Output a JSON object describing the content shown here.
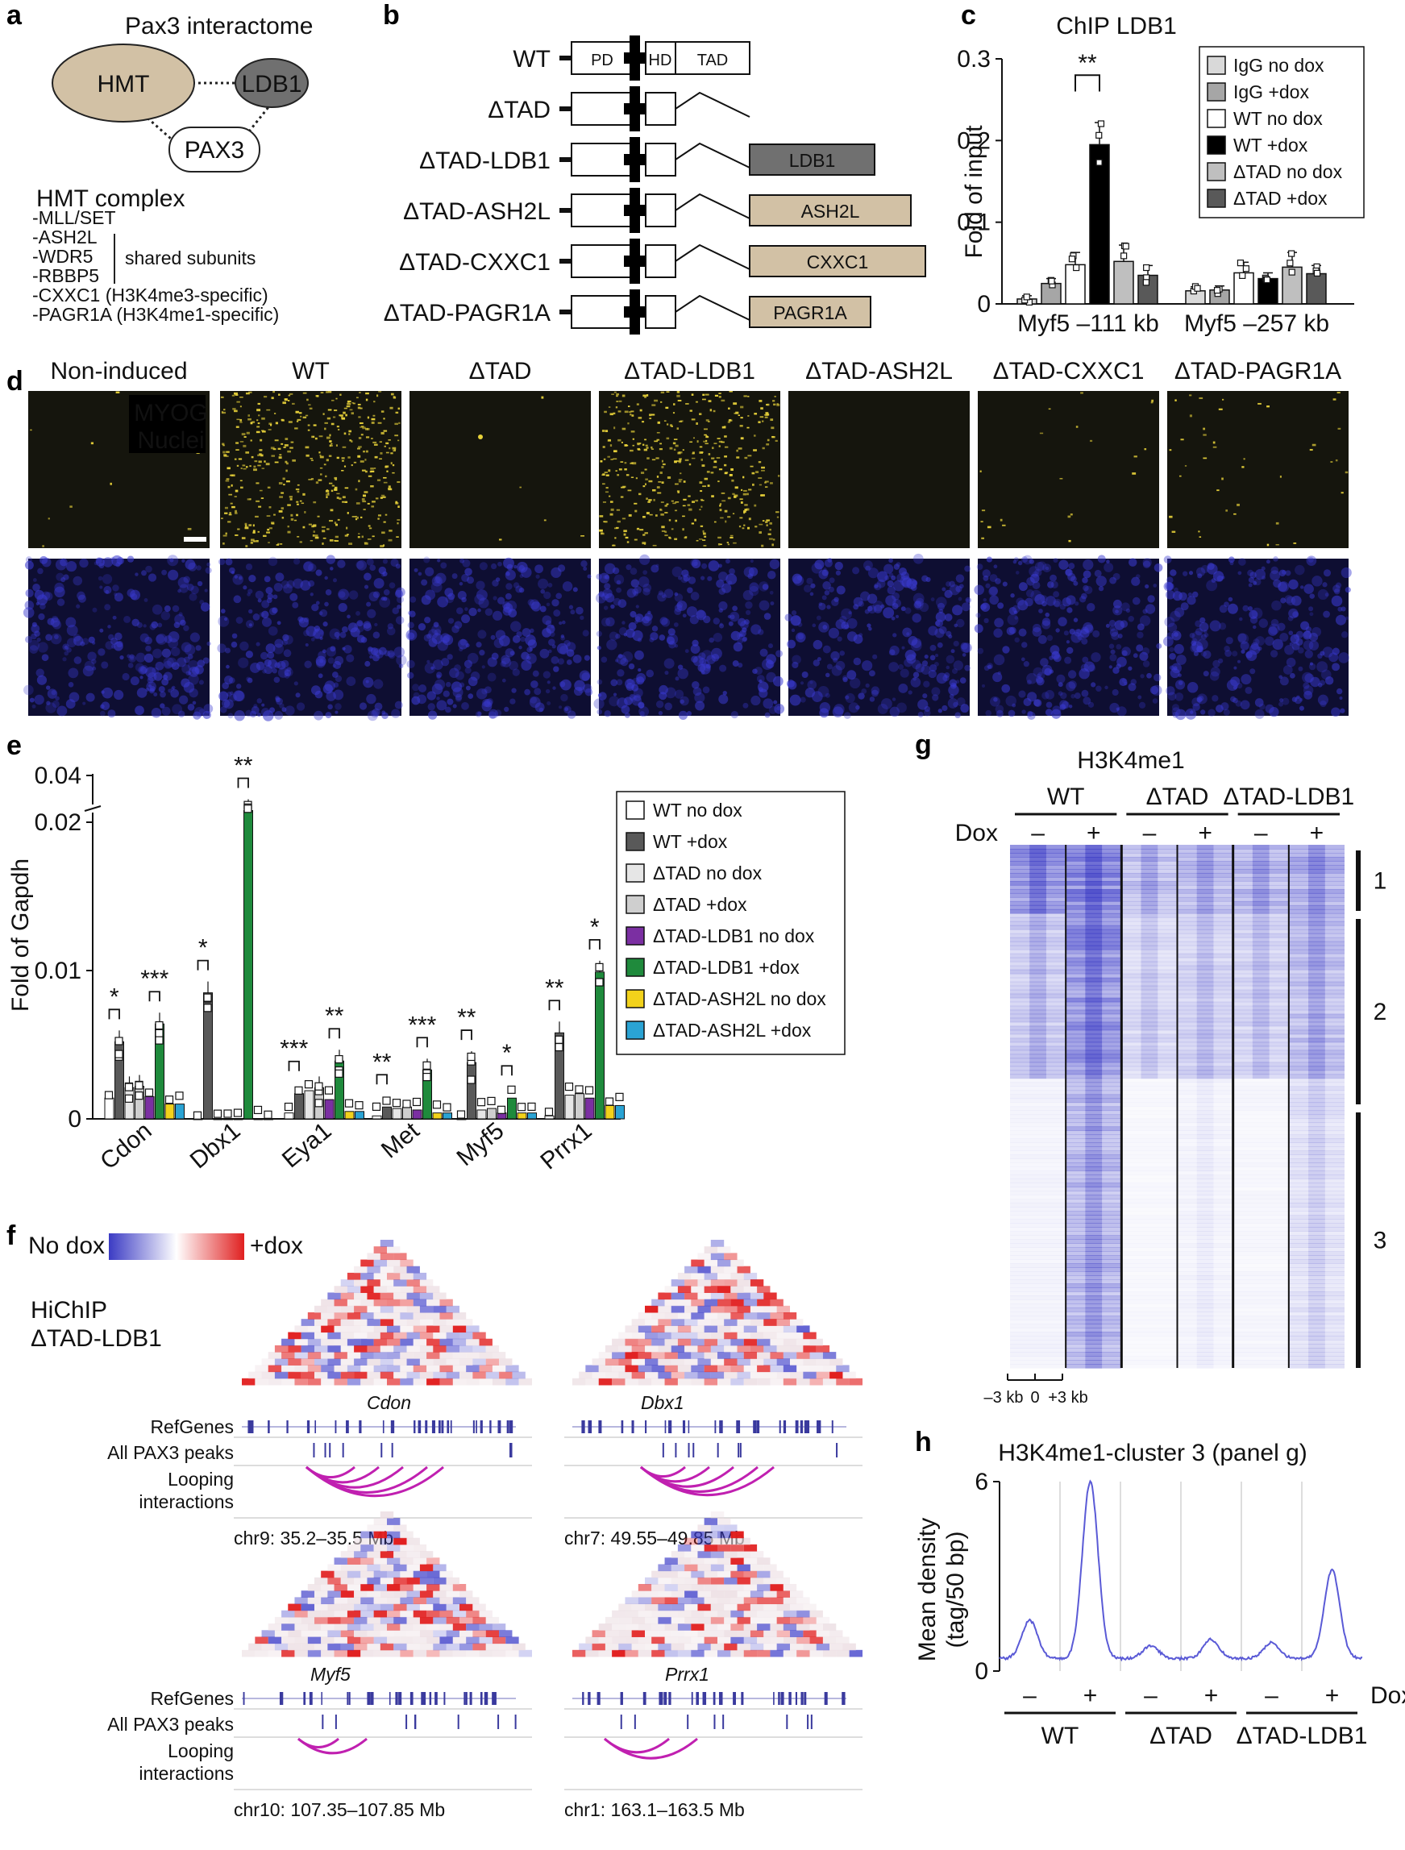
{
  "panel_letters": [
    "a",
    "b",
    "c",
    "d",
    "e",
    "f",
    "g",
    "h"
  ],
  "panel_a": {
    "title": "Pax3 interactome",
    "nodes": {
      "hmt": "HMT",
      "ldb1": "LDB1",
      "pax3": "PAX3"
    },
    "complex_title": "HMT complex",
    "subunits": [
      "-MLL/SET",
      "-ASH2L",
      "-WDR5",
      "-RBBP5",
      "-CXXC1 (H3K4me3-specific)",
      "-PAGR1A (H3K4me1-specific)"
    ],
    "shared_label": "shared subunits"
  },
  "panel_b": {
    "constructs": [
      {
        "name": "WT",
        "fusion": ""
      },
      {
        "name": "ΔTAD",
        "fusion": ""
      },
      {
        "name": "ΔTAD-LDB1",
        "fusion": "LDB1",
        "color": "#707070",
        "text_color": "#ffffff"
      },
      {
        "name": "ΔTAD-ASH2L",
        "fusion": "ASH2L",
        "color": "#d2c1a5",
        "text_color": "#111111"
      },
      {
        "name": "ΔTAD-CXXC1",
        "fusion": "CXXC1",
        "color": "#d2c1a5",
        "text_color": "#111111"
      },
      {
        "name": "ΔTAD-PAGR1A",
        "fusion": "PAGR1A",
        "color": "#d2c1a5",
        "text_color": "#111111"
      }
    ],
    "domains": {
      "pd": "PD",
      "hd": "HD",
      "tad": "TAD"
    }
  },
  "panel_c": {
    "title": "ChIP LDB1",
    "significance": "**",
    "chart_data": {
      "type": "bar",
      "title": "ChIP LDB1",
      "ylabel": "Fold of input",
      "ylim": [
        0,
        0.3
      ],
      "yticks": [
        "0",
        "0.1",
        "0.2",
        "0.3"
      ],
      "categories": [
        "Myf5 –111 kb",
        "Myf5 –257 kb"
      ],
      "series": [
        {
          "name": "IgG no dox",
          "color": "#d9d9d9",
          "values": [
            0.006,
            0.016
          ],
          "errors": [
            0.004,
            0.005
          ]
        },
        {
          "name": "IgG +dox",
          "color": "#a6a6a6",
          "values": [
            0.025,
            0.017
          ],
          "errors": [
            0.006,
            0.005
          ]
        },
        {
          "name": "WT no dox",
          "color": "#ffffff",
          "values": [
            0.048,
            0.038
          ],
          "errors": [
            0.015,
            0.013
          ]
        },
        {
          "name": "WT +dox",
          "color": "#000000",
          "values": [
            0.195,
            0.031
          ],
          "errors": [
            0.027,
            0.007
          ]
        },
        {
          "name": "ΔTAD no dox",
          "color": "#bfbfbf",
          "values": [
            0.052,
            0.045
          ],
          "errors": [
            0.02,
            0.018
          ]
        },
        {
          "name": "ΔTAD +dox",
          "color": "#595959",
          "values": [
            0.035,
            0.037
          ],
          "errors": [
            0.012,
            0.01
          ]
        }
      ]
    }
  },
  "panel_d": {
    "conditions": [
      "Non-induced",
      "WT",
      "ΔTAD",
      "ΔTAD-LDB1",
      "ΔTAD-ASH2L",
      "ΔTAD-CXXC1",
      "ΔTAD-PAGR1A"
    ],
    "legend_myog": "MYOG",
    "legend_nuclei": "Nuclei",
    "myog_color": "#e8d23a",
    "nuclei_color": "#3a3ad0",
    "myog_level": [
      0.02,
      0.9,
      0.01,
      0.85,
      0.0,
      0.04,
      0.08
    ]
  },
  "panel_e": {
    "chart_data": {
      "type": "bar",
      "ylabel": "Fold of Gapdh",
      "yticks": [
        "0",
        "0.01",
        "0.02",
        "0.04"
      ],
      "categories": [
        "Cdon",
        "Dbx1",
        "Eya1",
        "Met",
        "Myf5",
        "Prrx1"
      ],
      "series": [
        {
          "name": "WT no dox",
          "color": "#ffffff",
          "values": [
            0.0014,
            0.0,
            0.0004,
            0.0002,
            0.0,
            0.0002
          ]
        },
        {
          "name": "WT +dox",
          "color": "#595959",
          "values": [
            0.0052,
            0.0085,
            0.0017,
            0.0008,
            0.0038,
            0.0058
          ]
        },
        {
          "name": "ΔTAD no dox",
          "color": "#e6e6e6",
          "values": [
            0.0021,
            0.0,
            0.0019,
            0.0007,
            0.0006,
            0.0016
          ]
        },
        {
          "name": "ΔTAD +dox",
          "color": "#cfcfcf",
          "values": [
            0.0022,
            0.0,
            0.0021,
            0.0008,
            0.0007,
            0.0017
          ]
        },
        {
          "name": "ΔTAD-LDB1 no dox",
          "color": "#7b2fa2",
          "values": [
            0.0015,
            0.0,
            0.0013,
            0.0006,
            0.0004,
            0.0014
          ]
        },
        {
          "name": "ΔTAD-LDB1 +dox",
          "color": "#1f8a3c",
          "values": [
            0.0064,
            0.025,
            0.0039,
            0.0033,
            0.0014,
            0.0099
          ]
        },
        {
          "name": "ΔTAD-ASH2L no dox",
          "color": "#f2d21b",
          "values": [
            0.001,
            0.0,
            0.0005,
            0.0004,
            0.0004,
            0.0009
          ]
        },
        {
          "name": "ΔTAD-ASH2L +dox",
          "color": "#2aa3d4",
          "values": [
            0.001,
            0.0,
            0.0005,
            0.0004,
            0.0004,
            0.0009
          ]
        }
      ],
      "significance": [
        {
          "category": "Cdon",
          "pairs": [
            "*",
            "***"
          ]
        },
        {
          "category": "Dbx1",
          "pairs": [
            "*",
            "**"
          ]
        },
        {
          "category": "Eya1",
          "pairs": [
            "***",
            "**"
          ]
        },
        {
          "category": "Met",
          "pairs": [
            "**",
            "***"
          ]
        },
        {
          "category": "Myf5",
          "pairs": [
            "**",
            "*"
          ]
        },
        {
          "category": "Prrx1",
          "pairs": [
            "**",
            "*"
          ]
        }
      ]
    }
  },
  "panel_f": {
    "scale_left": "No dox",
    "scale_right": "+dox",
    "sample_line1": "HiChIP",
    "sample_line2": "ΔTAD-LDB1",
    "track_labels": {
      "refgenes": "RefGenes",
      "peaks": "All PAX3 peaks",
      "loops1": "Looping",
      "loops2": "interactions"
    },
    "loci": [
      {
        "gene": "Cdon",
        "region": "chr9: 35.2–35.5 Mb"
      },
      {
        "gene": "Dbx1",
        "region": "chr7: 49.55–49.85 Mb"
      },
      {
        "gene": "Myf5",
        "region": "chr10: 107.35–107.85 Mb"
      },
      {
        "gene": "Prrx1",
        "region": "chr1: 163.1–163.5 Mb"
      }
    ]
  },
  "panel_g": {
    "title": "H3K4me1",
    "groups": [
      "WT",
      "ΔTAD",
      "ΔTAD-LDB1"
    ],
    "dox_label": "Dox",
    "minus": "–",
    "plus": "+",
    "clusters": [
      "1",
      "2",
      "3"
    ],
    "scale_labels": [
      "–3 kb",
      "0",
      "+3 kb"
    ]
  },
  "panel_h": {
    "chart_data": {
      "type": "line",
      "title": "H3K4me1-cluster 3 (panel g)",
      "ylabel_line1": "Mean density",
      "ylabel_line2": "(tag/50 bp)",
      "ylim": [
        0,
        6
      ],
      "yticks": [
        "0",
        "6"
      ],
      "color": "#5a5ad6",
      "samples": [
        "WT –",
        "WT +",
        "ΔTAD –",
        "ΔTAD +",
        "ΔTAD-LDB1 –",
        "ΔTAD-LDB1 +"
      ],
      "peak_values": [
        1.6,
        6.0,
        0.8,
        1.0,
        0.9,
        3.2
      ],
      "baseline": 0.4
    },
    "dox_label": "Dox",
    "groups": [
      "WT",
      "ΔTAD",
      "ΔTAD-LDB1"
    ],
    "minus": "–",
    "plus": "+"
  }
}
